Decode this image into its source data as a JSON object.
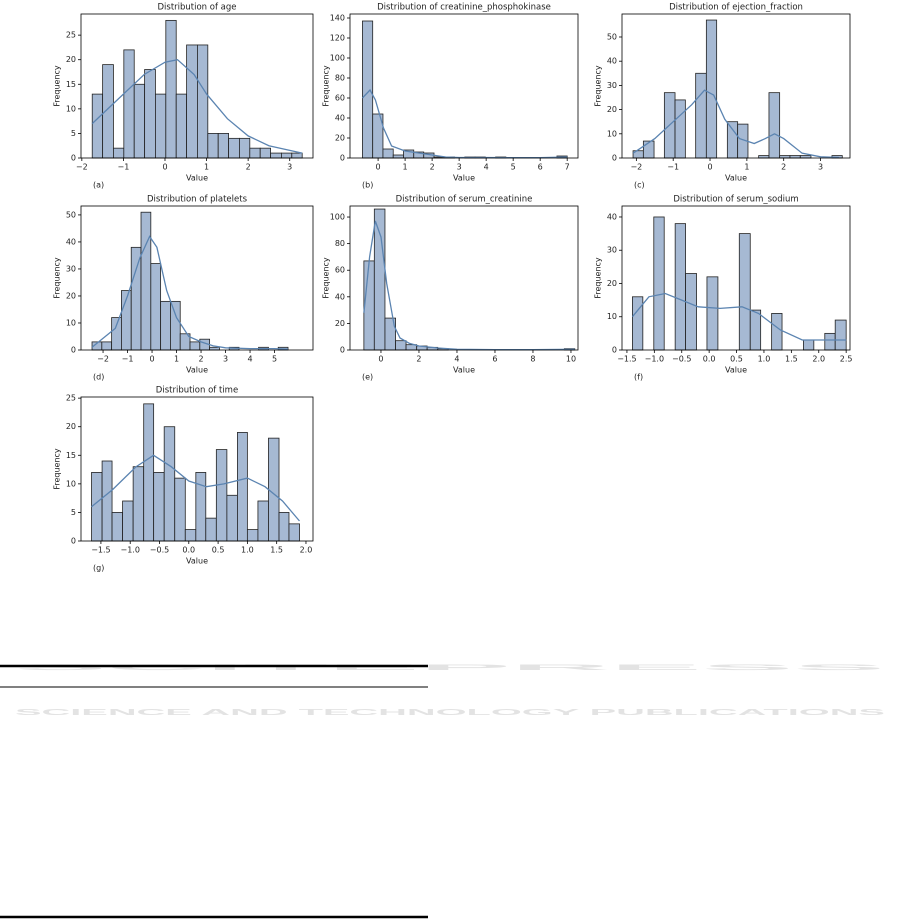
{
  "watermark": {
    "title": "SCITEPRESS",
    "subtitle": "SCIENCE AND TECHNOLOGY PUBLICATIONS"
  },
  "chart_data": [
    {
      "type": "histogram",
      "title": "Distribution of age",
      "xlabel": "Value",
      "ylabel": "Frequency",
      "panel": "(a)",
      "color": "#a6b9d3",
      "kde_color": "#5b84b1",
      "bins": [
        -1.75,
        -1.5,
        -1.24,
        -0.99,
        -0.74,
        -0.49,
        -0.23,
        0.02,
        0.27,
        0.52,
        0.78,
        1.03,
        1.28,
        1.53,
        1.79,
        2.04,
        2.29,
        2.54,
        2.8,
        3.05,
        3.3
      ],
      "counts": [
        13,
        19,
        2,
        22,
        15,
        18,
        13,
        28,
        13,
        23,
        23,
        5,
        5,
        4,
        4,
        2,
        2,
        1,
        1,
        1
      ],
      "kde": {
        "x": [
          -1.75,
          -1,
          -0.5,
          0,
          0.3,
          0.7,
          1,
          1.5,
          2,
          2.5,
          3.3
        ],
        "y": [
          7,
          13,
          17,
          19.5,
          20,
          17,
          13,
          8,
          4.5,
          2.5,
          1
        ]
      },
      "xlim": [
        -2.02,
        3.56
      ],
      "ylim": [
        0,
        29.3
      ],
      "xticks": [
        {
          "value": -2,
          "label": "−2"
        },
        {
          "value": -1,
          "label": "−1"
        },
        0,
        1,
        2,
        3
      ],
      "yticks": [
        0,
        5,
        10,
        15,
        20,
        25
      ]
    },
    {
      "type": "histogram",
      "title": "Distribution of creatinine_phosphokinase",
      "xlabel": "Value",
      "ylabel": "Frequency",
      "panel": "(b)",
      "color": "#a6b9d3",
      "kde_color": "#5b84b1",
      "bins": [
        -0.58,
        -0.2,
        0.18,
        0.56,
        0.94,
        1.32,
        1.69,
        2.07,
        2.45,
        2.83,
        3.21,
        3.59,
        3.97,
        4.35,
        4.73,
        5.11,
        5.48,
        5.86,
        6.24,
        6.62,
        7.0
      ],
      "counts": [
        137,
        44,
        9,
        3,
        8,
        6,
        5,
        1,
        1,
        0,
        1,
        1,
        0,
        1,
        0,
        0,
        0,
        0,
        0,
        2
      ],
      "kde": {
        "x": [
          -0.58,
          -0.3,
          -0.1,
          0.2,
          0.5,
          1,
          1.5,
          2,
          2.5,
          3,
          4,
          5,
          6,
          7
        ],
        "y": [
          60,
          68,
          58,
          30,
          12,
          7,
          5,
          3,
          1,
          0.5,
          0.5,
          0.3,
          0.3,
          1
        ]
      },
      "xlim": [
        -1.04,
        7.4
      ],
      "ylim": [
        0,
        144
      ],
      "xticks": [
        0,
        1,
        2,
        3,
        4,
        5,
        6,
        7
      ],
      "yticks": [
        0,
        20,
        40,
        60,
        80,
        100,
        120,
        140
      ]
    },
    {
      "type": "histogram",
      "title": "Distribution of ejection_fraction",
      "xlabel": "Value",
      "ylabel": "Frequency",
      "panel": "(c)",
      "color": "#a6b9d3",
      "kde_color": "#5b84b1",
      "bins": [
        -2.09,
        -1.81,
        -1.52,
        -1.24,
        -0.95,
        -0.67,
        -0.39,
        -0.1,
        0.18,
        0.47,
        0.75,
        1.03,
        1.32,
        1.6,
        1.89,
        2.17,
        2.45,
        2.74,
        3.02,
        3.31,
        3.59
      ],
      "counts": [
        3,
        7,
        0,
        27,
        24,
        0,
        35,
        57,
        0,
        15,
        14,
        0,
        1,
        27,
        1,
        1,
        1,
        0,
        0,
        1
      ],
      "kde": {
        "x": [
          -2.09,
          -1.5,
          -1,
          -0.5,
          -0.15,
          0.1,
          0.4,
          0.8,
          1.2,
          1.5,
          1.75,
          2,
          2.5,
          3,
          3.5
        ],
        "y": [
          2,
          8,
          15,
          22,
          28,
          26,
          16,
          8,
          6,
          8,
          10,
          8,
          2,
          0.5,
          0.2
        ]
      },
      "xlim": [
        -2.39,
        3.8
      ],
      "ylim": [
        0,
        59.5
      ],
      "xticks": [
        {
          "value": -2,
          "label": "−2"
        },
        {
          "value": -1,
          "label": "−1"
        },
        0,
        1,
        2,
        3
      ],
      "yticks": [
        0,
        10,
        20,
        30,
        40,
        50
      ]
    },
    {
      "type": "histogram",
      "title": "Distribution of platelets",
      "xlabel": "Value",
      "ylabel": "Frequency",
      "panel": "(d)",
      "color": "#a6b9d3",
      "kde_color": "#5b84b1",
      "bins": [
        -2.45,
        -2.05,
        -1.65,
        -1.25,
        -0.85,
        -0.45,
        -0.05,
        0.35,
        0.75,
        1.15,
        1.55,
        1.95,
        2.35,
        2.75,
        3.15,
        3.55,
        3.95,
        4.35,
        4.75,
        5.15,
        5.55
      ],
      "counts": [
        3,
        3,
        12,
        22,
        38,
        51,
        32,
        18,
        18,
        6,
        3,
        4,
        1,
        0,
        1,
        0,
        0,
        1,
        0,
        1
      ],
      "kde": {
        "x": [
          -2.45,
          -1.5,
          -1,
          -0.5,
          -0.1,
          0.2,
          0.6,
          1,
          1.5,
          2,
          2.5,
          3,
          4,
          5,
          5.55
        ],
        "y": [
          1,
          8,
          20,
          34,
          42,
          38,
          22,
          12,
          5,
          3,
          1.5,
          0.8,
          0.5,
          0.5,
          0.3
        ]
      },
      "xlim": [
        -2.9,
        6.57
      ],
      "ylim": [
        0,
        53.3
      ],
      "xticks": [
        {
          "value": -2,
          "label": "−2"
        },
        {
          "value": -1,
          "label": "−1"
        },
        0,
        1,
        2,
        3,
        4,
        5
      ],
      "yticks": [
        0,
        10,
        20,
        30,
        40,
        50
      ]
    },
    {
      "type": "histogram",
      "title": "Distribution of serum_creatinine",
      "xlabel": "Value",
      "ylabel": "Frequency",
      "panel": "(e)",
      "color": "#a6b9d3",
      "kde_color": "#5b84b1",
      "bins": [
        -0.9,
        -0.35,
        0.21,
        0.77,
        1.32,
        1.88,
        2.43,
        2.99,
        3.54,
        4.1,
        4.65,
        5.21,
        5.76,
        6.32,
        6.87,
        7.43,
        7.98,
        8.54,
        9.09,
        9.65,
        10.2
      ],
      "counts": [
        67,
        106,
        24,
        7,
        4,
        3,
        2,
        1,
        0,
        0,
        0,
        0,
        0,
        0,
        0,
        0,
        0,
        0,
        0,
        1
      ],
      "kde": {
        "x": [
          -0.9,
          -0.6,
          -0.3,
          0,
          0.3,
          0.7,
          1,
          1.5,
          2,
          3,
          4,
          6,
          8,
          10.2
        ],
        "y": [
          28,
          70,
          97,
          85,
          50,
          18,
          9,
          5,
          3,
          1.5,
          0.5,
          0.2,
          0.2,
          0.5
        ]
      },
      "xlim": [
        -1.63,
        10.37
      ],
      "ylim": [
        0,
        108.3
      ],
      "xticks": [
        0,
        2,
        4,
        6,
        8,
        10
      ],
      "yticks": [
        0,
        20,
        40,
        60,
        80,
        100
      ]
    },
    {
      "type": "histogram",
      "title": "Distribution of serum_sodium",
      "xlabel": "Value",
      "ylabel": "Frequency",
      "panel": "(f)",
      "color": "#a6b9d3",
      "kde_color": "#5b84b1",
      "bins": [
        -1.4,
        -1.21,
        -1.01,
        -0.82,
        -0.62,
        -0.43,
        -0.23,
        -0.04,
        0.16,
        0.35,
        0.55,
        0.75,
        0.94,
        1.14,
        1.33,
        1.53,
        1.72,
        1.91,
        2.11,
        2.3,
        2.5
      ],
      "counts": [
        16,
        0,
        40,
        0,
        38,
        23,
        0,
        22,
        0,
        0,
        35,
        12,
        0,
        11,
        0,
        0,
        3,
        0,
        5,
        9
      ],
      "kde": {
        "x": [
          -1.4,
          -1.1,
          -0.8,
          -0.5,
          -0.2,
          0.2,
          0.6,
          0.9,
          1.3,
          1.7,
          2.1,
          2.5
        ],
        "y": [
          10,
          16,
          17,
          15,
          13,
          12.5,
          13,
          11,
          6,
          3,
          3,
          3
        ]
      },
      "xlim": [
        -1.59,
        2.57
      ],
      "ylim": [
        0,
        43.3
      ],
      "xticks": [
        {
          "value": -1.5,
          "label": "−1.5"
        },
        {
          "value": -1,
          "label": "−1.0"
        },
        {
          "value": -0.5,
          "label": "−0.5"
        },
        {
          "value": 0,
          "label": "0.0"
        },
        0.5,
        {
          "value": 1,
          "label": "1.0"
        },
        1.5,
        {
          "value": 2,
          "label": "2.0"
        },
        2.5
      ],
      "yticks": [
        0,
        10,
        20,
        30,
        40
      ]
    },
    {
      "type": "histogram",
      "title": "Distribution of time",
      "xlabel": "Value",
      "ylabel": "Frequency",
      "panel": "(g)",
      "color": "#a6b9d3",
      "kde_color": "#5b84b1",
      "bins": [
        -1.66,
        -1.48,
        -1.31,
        -1.13,
        -0.95,
        -0.77,
        -0.6,
        -0.42,
        -0.24,
        -0.06,
        0.12,
        0.29,
        0.47,
        0.65,
        0.83,
        1.0,
        1.18,
        1.36,
        1.54,
        1.71,
        1.89
      ],
      "counts": [
        12,
        14,
        5,
        7,
        13,
        24,
        12,
        20,
        11,
        2,
        12,
        4,
        16,
        8,
        19,
        2,
        7,
        18,
        5,
        3
      ],
      "kde": {
        "x": [
          -1.66,
          -1.3,
          -0.9,
          -0.6,
          -0.3,
          0,
          0.3,
          0.6,
          1,
          1.3,
          1.6,
          1.89
        ],
        "y": [
          6,
          9,
          13,
          15,
          13,
          10.5,
          9.5,
          10,
          11,
          9.5,
          7,
          3.5
        ]
      },
      "xlim": [
        -1.84,
        2.12
      ],
      "ylim": [
        0,
        25.2
      ],
      "xticks": [
        {
          "value": -1.5,
          "label": "−1.5"
        },
        {
          "value": -1,
          "label": "−1.0"
        },
        {
          "value": -0.5,
          "label": "−0.5"
        },
        {
          "value": 0,
          "label": "0.0"
        },
        0.5,
        {
          "value": 1,
          "label": "1.0"
        },
        1.5,
        {
          "value": 2,
          "label": "2.0"
        }
      ],
      "yticks": [
        0,
        5,
        10,
        15,
        20,
        25
      ]
    }
  ]
}
